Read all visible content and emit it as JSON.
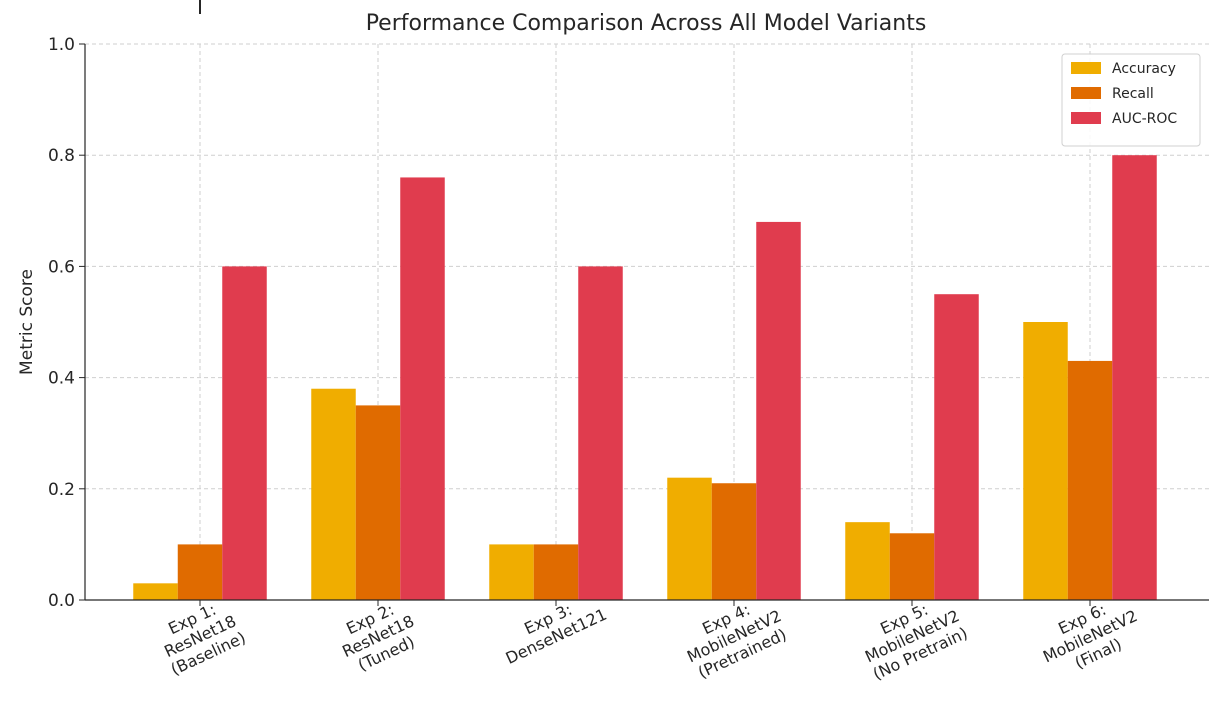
{
  "chart_data": {
    "type": "bar",
    "title": "Performance Comparison Across All Model Variants",
    "xlabel": "",
    "ylabel": "Metric Score",
    "ylim": [
      0,
      1.0
    ],
    "yticks": [
      "0.0",
      "0.2",
      "0.4",
      "0.6",
      "0.8",
      "1.0"
    ],
    "grid": true,
    "legend_position": "top-right",
    "categories": [
      [
        "Exp 1:",
        "ResNet18",
        "(Baseline)"
      ],
      [
        "Exp 2:",
        "ResNet18",
        "(Tuned)"
      ],
      [
        "Exp 3:",
        "DenseNet121"
      ],
      [
        "Exp 4:",
        "MobileNetV2",
        "(Pretrained)"
      ],
      [
        "Exp 5:",
        "MobileNetV2",
        "(No Pretrain)"
      ],
      [
        "Exp 6:",
        "MobileNetV2",
        "(Final)"
      ]
    ],
    "series": [
      {
        "name": "Accuracy",
        "color": "#f0ad00",
        "values": [
          0.03,
          0.38,
          0.1,
          0.22,
          0.14,
          0.5
        ]
      },
      {
        "name": "Recall",
        "color": "#e06b00",
        "values": [
          0.1,
          0.35,
          0.1,
          0.21,
          0.12,
          0.43
        ]
      },
      {
        "name": "AUC-ROC",
        "color": "#e03c4e",
        "values": [
          0.6,
          0.76,
          0.6,
          0.68,
          0.55,
          0.8
        ]
      }
    ]
  }
}
